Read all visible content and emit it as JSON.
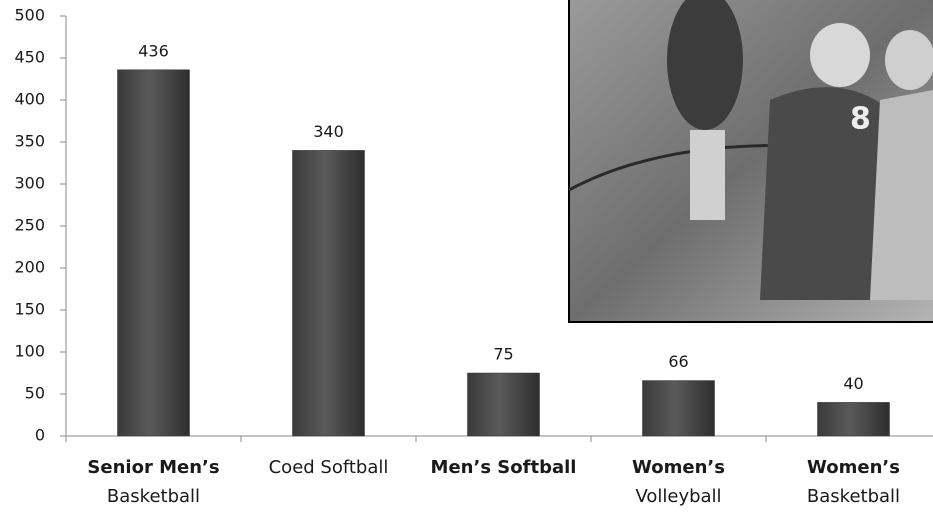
{
  "chart_data": {
    "type": "bar",
    "categories": [
      [
        "Senior Men’s",
        "Basketball"
      ],
      [
        "Coed Softball"
      ],
      [
        "Men’s Softball"
      ],
      [
        "Women’s",
        "Volleyball"
      ],
      [
        "Women’s",
        "Basketball"
      ]
    ],
    "label_bold": [
      true,
      false,
      true,
      true,
      true
    ],
    "values": [
      436,
      340,
      75,
      66,
      40
    ],
    "color": "#5a5a5a",
    "ylim": [
      0,
      500
    ],
    "yticks": [
      0,
      50,
      100,
      150,
      200,
      250,
      300,
      350,
      400,
      450,
      500
    ]
  }
}
